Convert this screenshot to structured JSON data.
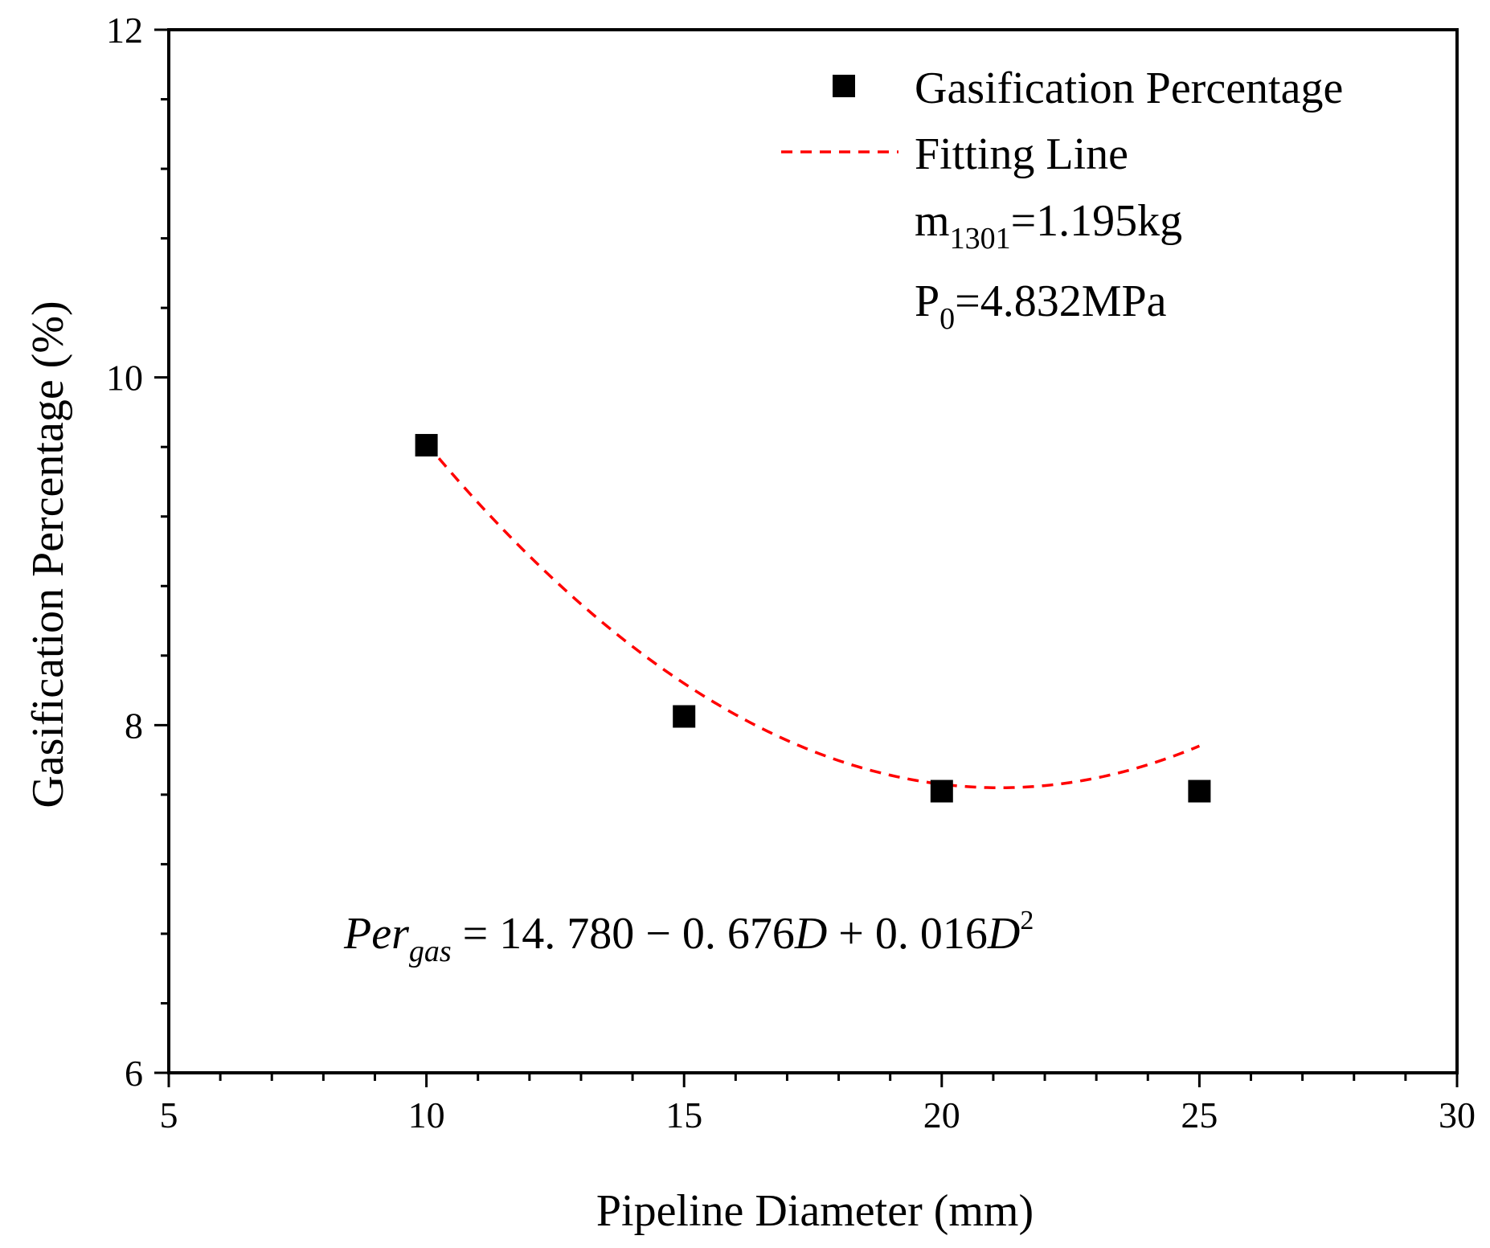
{
  "chart_data": {
    "type": "scatter",
    "xlabel": "Pipeline Diameter (mm)",
    "ylabel": "Gasification Percentage (%)",
    "xlim": [
      5,
      30
    ],
    "ylim": [
      6,
      12
    ],
    "x_major_ticks": [
      5,
      10,
      15,
      20,
      25,
      30
    ],
    "x_minor_step": 1,
    "y_major_ticks": [
      6,
      8,
      10,
      12
    ],
    "y_minor_step": 0.4,
    "x_tick_labels": [
      "5",
      "10",
      "15",
      "20",
      "25",
      "30"
    ],
    "y_tick_labels": [
      "6",
      "8",
      "10",
      "12"
    ],
    "series": [
      {
        "name": "Gasification Percentage",
        "kind": "scatter",
        "marker": "square",
        "color": "#000000",
        "x": [
          10,
          15,
          20,
          25
        ],
        "y": [
          9.61,
          8.05,
          7.62,
          7.62
        ]
      },
      {
        "name": "Fitting Line",
        "kind": "line",
        "style": "dashed",
        "color": "#ff0000",
        "coefficients": [
          14.78,
          -0.676,
          0.016
        ],
        "x_range": [
          10,
          25
        ]
      }
    ],
    "annotations": {
      "mass_main": "m",
      "mass_sub": "1301",
      "mass_value": "=1.195kg",
      "pressure_main": "P",
      "pressure_sub": "0",
      "pressure_value": "=4.832MPa"
    },
    "equation": {
      "lhs_main": "Per",
      "lhs_sub": "gas",
      "rhs_part1": " = 14. 780 − 0. 676",
      "var1": "D",
      "rhs_part2": " + 0. 016",
      "var2": "D",
      "exponent": "2"
    },
    "legend_position": "top-right",
    "grid": false
  }
}
